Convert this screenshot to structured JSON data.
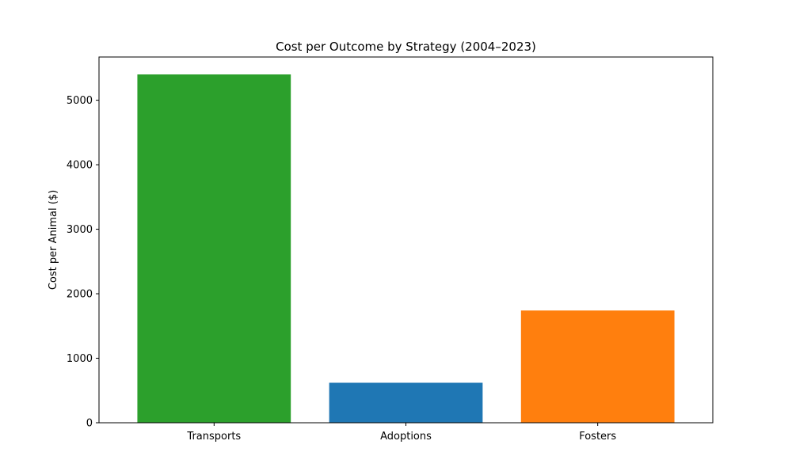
{
  "chart_data": {
    "type": "bar",
    "title": "Cost per Outcome by Strategy (2004–2023)",
    "xlabel": "",
    "ylabel": "Cost per Animal ($)",
    "categories": [
      "Transports",
      "Adoptions",
      "Fosters"
    ],
    "values": [
      5400,
      620,
      1740
    ],
    "colors": [
      "#2ca02c",
      "#1f77b4",
      "#ff7f0e"
    ],
    "ylim": [
      0,
      5670
    ],
    "yticks": [
      0,
      1000,
      2000,
      3000,
      4000,
      5000
    ],
    "grid": false,
    "legend": "none"
  }
}
